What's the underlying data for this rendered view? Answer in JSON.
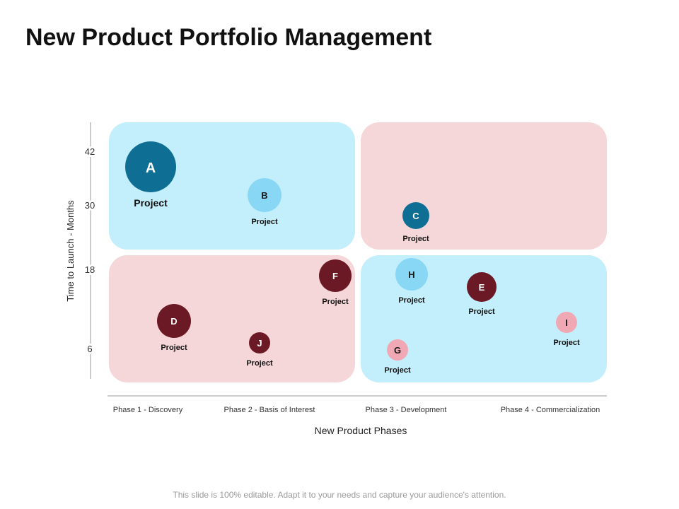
{
  "title": "New Product Portfolio Management",
  "footer": "This slide is 100% editable. Adapt it to your needs and capture your audience's attention.",
  "colors": {
    "quadrant_blue": "#c3eefb",
    "quadrant_pink": "#f5d6d9",
    "teal": "#0e6e93",
    "light_blue": "#88d8f5",
    "maroon": "#6b1a25",
    "pink": "#f0a9b4",
    "axis_line": "#9a9a9a"
  },
  "chart_data": {
    "type": "bubble",
    "xlabel": "New Product Phases",
    "ylabel": "Time to Launch - Months",
    "categories": [
      "Phase 1 - Discovery",
      "Phase 2 - Basis of Interest",
      "Phase 3 - Development",
      "Phase 4 - Commercialization"
    ],
    "y_ticks": [
      42,
      30,
      18,
      6
    ],
    "xlim": [
      0.5,
      4.5
    ],
    "ylim": [
      -0.3,
      47.2
    ],
    "quadrants": [
      {
        "name": "top-left",
        "color": "quadrant_blue"
      },
      {
        "name": "top-right",
        "color": "quadrant_pink"
      },
      {
        "name": "bottom-left",
        "color": "quadrant_pink"
      },
      {
        "name": "bottom-right",
        "color": "quadrant_blue"
      }
    ],
    "points": [
      {
        "id": "A",
        "label": "Project",
        "x": 1.0,
        "y": 40.0,
        "size": 36,
        "color": "teal",
        "big": true
      },
      {
        "id": "B",
        "label": "Project",
        "x": 2.15,
        "y": 34.0,
        "size": 24,
        "color": "light_blue"
      },
      {
        "id": "C",
        "label": "Project",
        "x": 3.3,
        "y": 29.0,
        "size": 19,
        "color": "teal"
      },
      {
        "id": "D",
        "label": "Project",
        "x": 1.35,
        "y": 10.5,
        "size": 24,
        "color": "maroon"
      },
      {
        "id": "E",
        "label": "Project",
        "x": 4.0,
        "y": 16.5,
        "size": 21,
        "color": "maroon"
      },
      {
        "id": "F",
        "label": "Project",
        "x": 2.8,
        "y": 18.5,
        "size": 23,
        "color": "maroon"
      },
      {
        "id": "G",
        "label": "Project",
        "x": 3.15,
        "y": 6.0,
        "size": 15,
        "color": "pink"
      },
      {
        "id": "H",
        "label": "Project",
        "x": 3.3,
        "y": 19.0,
        "size": 23,
        "color": "light_blue"
      },
      {
        "id": "I",
        "label": "Project",
        "x": 4.7,
        "y": 10.5,
        "size": 15,
        "color": "pink"
      },
      {
        "id": "J",
        "label": "Project",
        "x": 2.1,
        "y": 7.0,
        "size": 15,
        "color": "maroon"
      }
    ]
  }
}
